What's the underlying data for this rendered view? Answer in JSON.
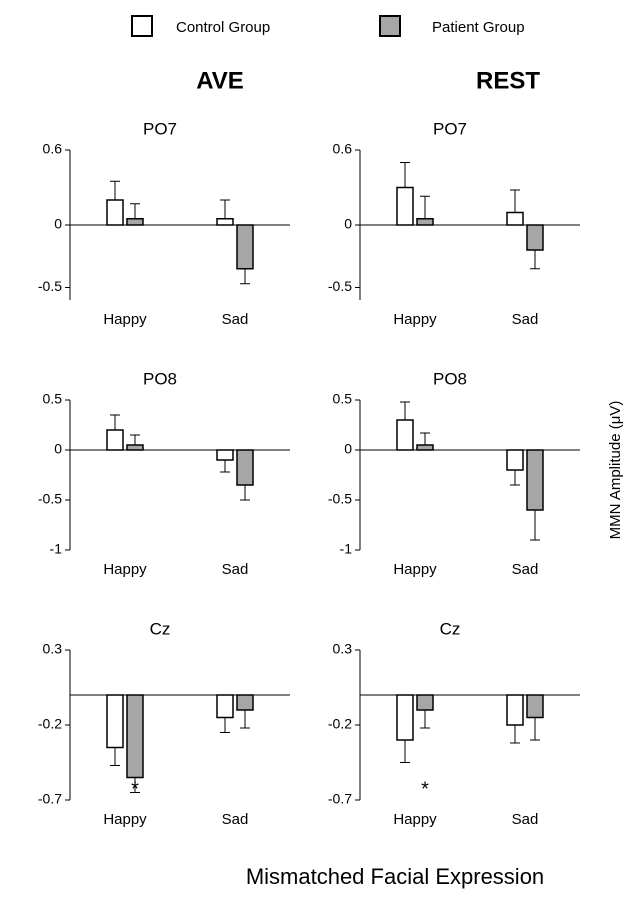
{
  "chart_data": {
    "type": "bar",
    "series": [
      {
        "name": "Control Group",
        "color": "#ffffff"
      },
      {
        "name": "Patient Group",
        "color": "#a6a6a6"
      }
    ],
    "columns": [
      "AVE",
      "REST"
    ],
    "y_label": "MMN Amplitude (μV)",
    "x_label": "Mismatched Facial Expression",
    "panels": [
      {
        "title": "PO7",
        "categories": [
          "Happy",
          "Sad"
        ],
        "values": [
          [
            0.2,
            0.05
          ],
          [
            0.05,
            -0.35
          ]
        ],
        "errors": [
          [
            0.15,
            0.12
          ],
          [
            0.15,
            0.12
          ]
        ],
        "ylim": [
          -0.6,
          0.6
        ],
        "yticks": [
          0.6,
          0.0,
          -0.5
        ]
      },
      {
        "title": "PO7",
        "categories": [
          "Happy",
          "Sad"
        ],
        "values": [
          [
            0.3,
            0.05
          ],
          [
            0.1,
            -0.2
          ]
        ],
        "errors": [
          [
            0.2,
            0.18
          ],
          [
            0.18,
            0.15
          ]
        ],
        "ylim": [
          -0.6,
          0.6
        ],
        "yticks": [
          0.6,
          0.0,
          -0.5
        ]
      },
      {
        "title": "PO8",
        "categories": [
          "Happy",
          "Sad"
        ],
        "values": [
          [
            0.2,
            0.05
          ],
          [
            -0.1,
            -0.35
          ]
        ],
        "errors": [
          [
            0.15,
            0.1
          ],
          [
            0.12,
            0.15
          ]
        ],
        "ylim": [
          -1.0,
          0.5
        ],
        "yticks": [
          0.5,
          0.0,
          -0.5,
          -1.0
        ]
      },
      {
        "title": "PO8",
        "categories": [
          "Happy",
          "Sad"
        ],
        "values": [
          [
            0.3,
            0.05
          ],
          [
            -0.2,
            -0.6
          ]
        ],
        "errors": [
          [
            0.18,
            0.12
          ],
          [
            0.15,
            0.3
          ]
        ],
        "ylim": [
          -1.0,
          0.5
        ],
        "yticks": [
          0.5,
          0.0,
          -0.5,
          -1.0
        ]
      },
      {
        "title": "Cz",
        "categories": [
          "Happy",
          "Sad"
        ],
        "values": [
          [
            -0.35,
            -0.55
          ],
          [
            -0.15,
            -0.1
          ]
        ],
        "errors": [
          [
            0.12,
            0.1
          ],
          [
            0.1,
            0.12
          ]
        ],
        "ylim": [
          -0.7,
          0.3
        ],
        "yticks": [
          0.3,
          -0.2,
          -0.7
        ],
        "annotation": "*"
      },
      {
        "title": "Cz",
        "categories": [
          "Happy",
          "Sad"
        ],
        "values": [
          [
            -0.3,
            -0.1
          ],
          [
            -0.2,
            -0.15
          ]
        ],
        "errors": [
          [
            0.15,
            0.12
          ],
          [
            0.12,
            0.15
          ]
        ],
        "ylim": [
          -0.7,
          0.3
        ],
        "yticks": [
          0.3,
          -0.2,
          -0.7
        ],
        "annotation": "*"
      }
    ]
  }
}
